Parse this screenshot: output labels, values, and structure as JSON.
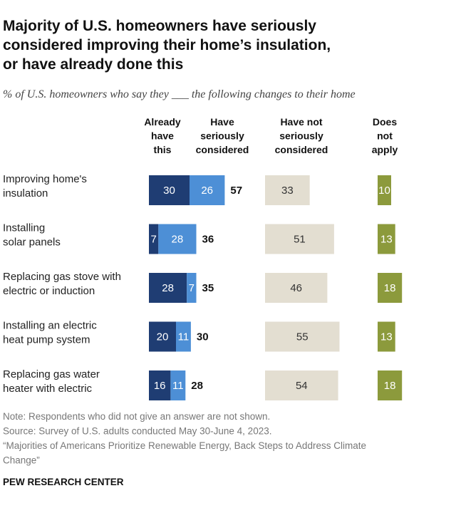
{
  "chart_data": {
    "type": "bar",
    "title": "Majority of U.S. homeowners have seriously\nconsidered improving their home’s insulation,\nor have already done this",
    "subtitle": "% of U.S. homeowners who say they ___ the following changes to their home",
    "categories": [
      "Improving home's\ninsulation",
      "Installing\nsolar panels",
      "Replacing gas stove with\nelectric or induction",
      "Installing an electric\nheat pump system",
      "Replacing gas water\nheater with electric"
    ],
    "series": [
      {
        "name": "Already\nhave\nthis",
        "color": "#1f3d73",
        "values": [
          30,
          7,
          28,
          20,
          16
        ],
        "group": 0
      },
      {
        "name": "Have\nseriously\nconsidered",
        "color": "#4d8fd6",
        "values": [
          26,
          28,
          7,
          11,
          11
        ],
        "group": 0,
        "net_values": [
          57,
          36,
          35,
          30,
          28
        ]
      },
      {
        "name": "Have not\nseriously\nconsidered",
        "color": "#e3ded1",
        "values": [
          33,
          51,
          46,
          55,
          54
        ],
        "group": 1
      },
      {
        "name": "Does\nnot\napply",
        "color": "#8c9a3c",
        "values": [
          10,
          13,
          18,
          13,
          18
        ],
        "group": 2
      }
    ],
    "notes": [
      "Note: Respondents who did not give an answer are not shown.",
      "Source: Survey of U.S. adults conducted May 30-June 4, 2023.",
      "“Majorities of Americans Prioritize Renewable Energy, Back Steps to Address Climate\nChange”"
    ],
    "brand": "PEW RESEARCH CENTER"
  }
}
